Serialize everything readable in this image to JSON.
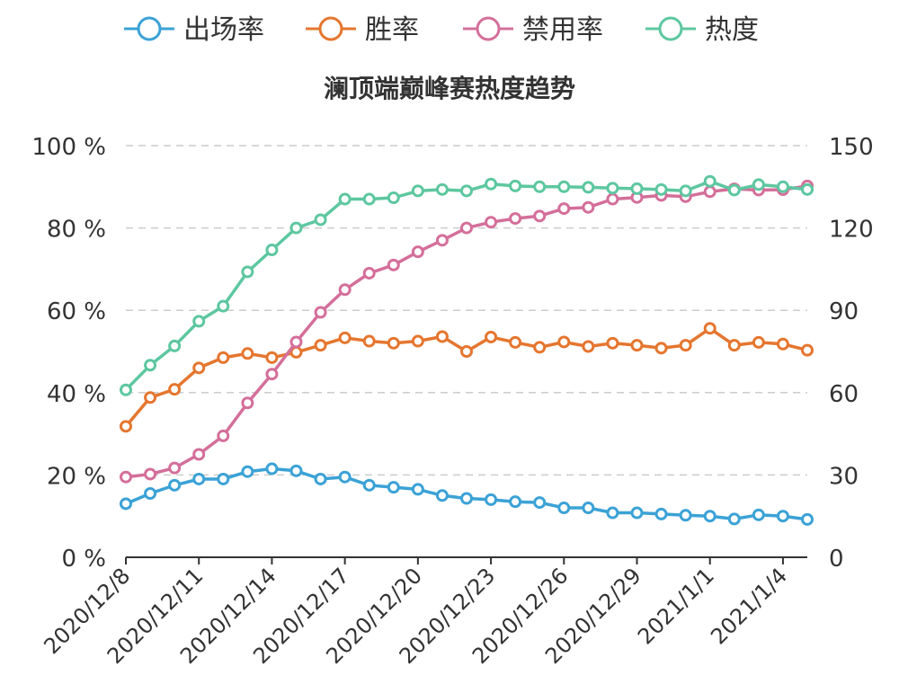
{
  "chart_data": {
    "type": "line",
    "title": "澜顶端巅峰赛热度趋势",
    "legend_position": "top",
    "grid": true,
    "x": [
      "2020/12/8",
      "2020/12/9",
      "2020/12/10",
      "2020/12/11",
      "2020/12/12",
      "2020/12/13",
      "2020/12/14",
      "2020/12/15",
      "2020/12/16",
      "2020/12/17",
      "2020/12/18",
      "2020/12/19",
      "2020/12/20",
      "2020/12/21",
      "2020/12/22",
      "2020/12/23",
      "2020/12/24",
      "2020/12/25",
      "2020/12/26",
      "2020/12/27",
      "2020/12/28",
      "2020/12/29",
      "2020/12/30",
      "2020/12/31",
      "2021/1/1",
      "2021/1/2",
      "2021/1/3",
      "2021/1/4",
      "2021/1/5"
    ],
    "x_tick_labels": [
      "2020/12/8",
      "2020/12/11",
      "2020/12/14",
      "2020/12/17",
      "2020/12/20",
      "2020/12/23",
      "2020/12/26",
      "2020/12/29",
      "2021/1/1",
      "2021/1/4"
    ],
    "y_left": {
      "min": 0,
      "max": 100,
      "ticks": [
        "0 %",
        "20 %",
        "40 %",
        "60 %",
        "80 %",
        "100 %"
      ]
    },
    "y_right": {
      "min": 0,
      "max": 150,
      "ticks": [
        "0",
        "30",
        "60",
        "90",
        "120",
        "150"
      ]
    },
    "series": [
      {
        "name": "出场率",
        "axis": "left",
        "color": "#3ba2d6",
        "values": [
          13.0,
          15.5,
          17.5,
          19.0,
          19.0,
          20.8,
          21.5,
          21.0,
          19.0,
          19.5,
          17.5,
          17.0,
          16.5,
          15.0,
          14.3,
          14.0,
          13.5,
          13.3,
          12.0,
          12.0,
          10.8,
          10.8,
          10.5,
          10.2,
          10.0,
          9.3,
          10.3,
          10.0,
          9.2
        ]
      },
      {
        "name": "胜率",
        "axis": "left",
        "color": "#e5762f",
        "values": [
          31.8,
          38.8,
          40.8,
          46.0,
          48.5,
          49.5,
          48.5,
          49.8,
          51.5,
          53.3,
          52.5,
          52.0,
          52.5,
          53.6,
          50.0,
          53.5,
          52.2,
          51.0,
          52.3,
          51.2,
          52.0,
          51.5,
          50.8,
          51.5,
          55.6,
          51.5,
          52.2,
          51.8,
          50.3
        ]
      },
      {
        "name": "禁用率",
        "axis": "left",
        "color": "#d46f9a",
        "values": [
          19.5,
          20.2,
          21.7,
          25.0,
          29.5,
          37.5,
          44.5,
          52.3,
          59.5,
          65.0,
          69.0,
          71.0,
          74.2,
          77.0,
          80.0,
          81.4,
          82.3,
          82.9,
          84.7,
          85.0,
          87.0,
          87.4,
          87.9,
          87.6,
          88.8,
          89.5,
          89.2,
          89.3,
          90.2
        ]
      },
      {
        "name": "热度",
        "axis": "right",
        "color": "#5dc7a0",
        "values": [
          61.0,
          70.0,
          77.0,
          86.0,
          91.5,
          104.0,
          112.0,
          120.0,
          123.0,
          130.5,
          130.5,
          131.0,
          133.5,
          134.0,
          133.5,
          136.0,
          135.3,
          135.0,
          135.0,
          134.8,
          134.5,
          134.3,
          134.0,
          133.5,
          137.0,
          133.8,
          135.8,
          135.0,
          134.0
        ]
      }
    ]
  }
}
